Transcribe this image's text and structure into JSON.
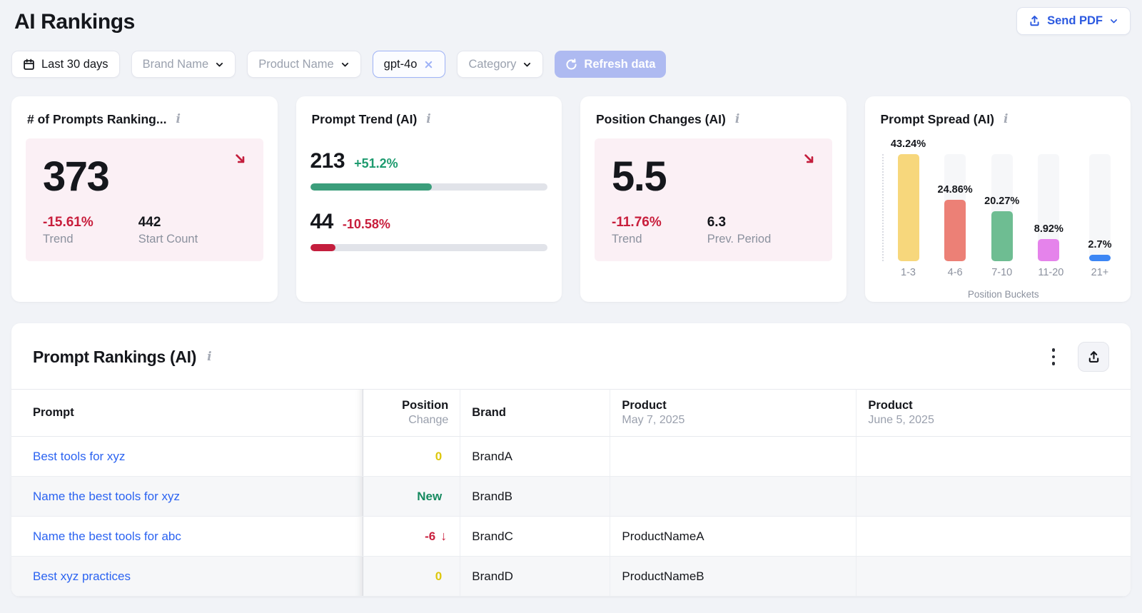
{
  "page": {
    "title": "AI Rankings"
  },
  "header": {
    "send_pdf_label": "Send PDF"
  },
  "filters": {
    "date_range": "Last 30 days",
    "brand_dropdown": "Brand Name",
    "product_dropdown": "Product Name",
    "model_chip": "gpt-4o",
    "category_dropdown": "Category",
    "refresh_label": "Refresh data"
  },
  "colors": {
    "positive": "#1e9b6f",
    "negative": "#c81e3c",
    "neutral_change": "#ddc70c",
    "new_change": "#168a60",
    "link": "#2b63f1",
    "accent_blue": "#2b59e0",
    "refresh_disabled_bg": "#aebaf1",
    "pink_panel": "#fbf0f5"
  },
  "cards": {
    "prompts_ranking": {
      "title": "# of Prompts Ranking...",
      "value": "373",
      "trend_pct": "-15.61%",
      "trend_label": "Trend",
      "start_count": "442",
      "start_count_label": "Start Count"
    },
    "prompt_trend": {
      "title": "Prompt Trend (AI)",
      "metrics": [
        {
          "value": "213",
          "pct": "+51.2%",
          "bar_pct": 51.2,
          "color": "#3b9e7b"
        },
        {
          "value": "44",
          "pct": "-10.58%",
          "bar_pct": 10.58,
          "color": "#c41e3d"
        }
      ]
    },
    "position_changes": {
      "title": "Position Changes (AI)",
      "value": "5.5",
      "trend_pct": "-11.76%",
      "trend_label": "Trend",
      "prev_value": "6.3",
      "prev_label": "Prev. Period"
    },
    "prompt_spread": {
      "title": "Prompt Spread (AI)",
      "chart_data": {
        "type": "bar",
        "categories": [
          "1-3",
          "4-6",
          "7-10",
          "11-20",
          "21+"
        ],
        "values": [
          43.24,
          24.86,
          20.27,
          8.92,
          2.7
        ],
        "labels": [
          "43.24%",
          "24.86%",
          "20.27%",
          "8.92%",
          "2.7%"
        ],
        "colors": [
          "#f7d77c",
          "#ec8076",
          "#6ebd92",
          "#e583eb",
          "#3c86f4"
        ],
        "xlabel": "Position Buckets",
        "ylim": [
          0,
          43.24
        ],
        "grid": false,
        "legend": false
      }
    }
  },
  "table_section": {
    "title": "Prompt Rankings (AI)",
    "columns": [
      {
        "label": "Prompt",
        "sublabel": ""
      },
      {
        "label": "Position",
        "sublabel": "Change"
      },
      {
        "label": "Brand",
        "sublabel": ""
      },
      {
        "label": "Product",
        "sublabel": "May 7, 2025"
      },
      {
        "label": "Product",
        "sublabel": "June 5, 2025"
      }
    ],
    "rows": [
      {
        "prompt": "Best tools for xyz",
        "change": "0",
        "change_type": "neutral",
        "brand": "BrandA",
        "product_may": "",
        "product_june": ""
      },
      {
        "prompt": "Name the best tools for xyz",
        "change": "New",
        "change_type": "new",
        "brand": "BrandB",
        "product_may": "",
        "product_june": ""
      },
      {
        "prompt": "Name the best tools for abc",
        "change": "-6",
        "change_arrow": "↓",
        "change_type": "down",
        "brand": "BrandC",
        "product_may": "ProductNameA",
        "product_june": ""
      },
      {
        "prompt": "Best xyz practices",
        "change": "0",
        "change_type": "neutral",
        "brand": "BrandD",
        "product_may": "ProductNameB",
        "product_june": ""
      }
    ]
  }
}
